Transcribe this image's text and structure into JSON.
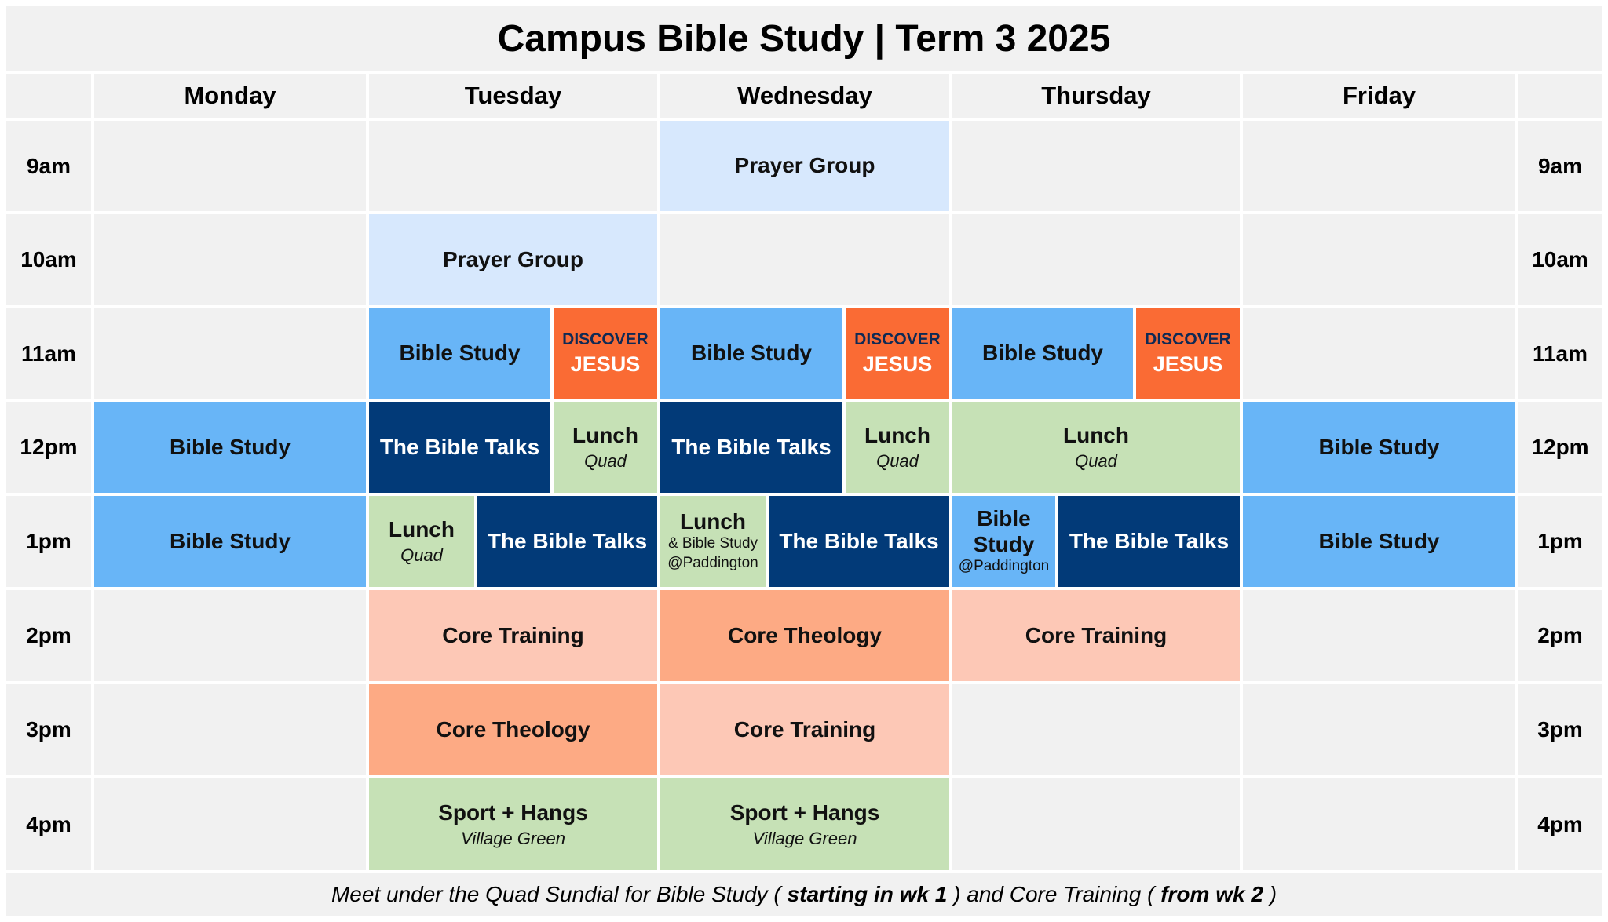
{
  "title": "Campus Bible Study | Term 3 2025",
  "days": [
    "Monday",
    "Tuesday",
    "Wednesday",
    "Thursday",
    "Friday"
  ],
  "times": [
    "9am",
    "10am",
    "11am",
    "12pm",
    "1pm",
    "2pm",
    "3pm",
    "4pm"
  ],
  "events": {
    "wed_9": {
      "title": "Prayer Group"
    },
    "tue_10": {
      "title": "Prayer Group"
    },
    "tue_11_bs": {
      "title": "Bible Study"
    },
    "tue_11_disc": {
      "top": "DISCOVER",
      "bottom": "JESUS"
    },
    "wed_11_bs": {
      "title": "Bible Study"
    },
    "wed_11_disc": {
      "top": "DISCOVER",
      "bottom": "JESUS"
    },
    "thu_11_bs": {
      "title": "Bible Study"
    },
    "thu_11_disc": {
      "top": "DISCOVER",
      "bottom": "JESUS"
    },
    "mon_12": {
      "title": "Bible Study"
    },
    "tue_12_talks": {
      "title": "The Bible Talks"
    },
    "tue_12_lunch": {
      "title": "Lunch",
      "location": "Quad"
    },
    "wed_12_talks": {
      "title": "The Bible Talks"
    },
    "wed_12_lunch": {
      "title": "Lunch",
      "location": "Quad"
    },
    "thu_12_lunch": {
      "title": "Lunch",
      "location": "Quad"
    },
    "fri_12": {
      "title": "Bible Study"
    },
    "mon_1": {
      "title": "Bible Study"
    },
    "tue_1_lunch": {
      "title": "Lunch",
      "location": "Quad"
    },
    "tue_1_talks": {
      "title": "The Bible Talks"
    },
    "wed_1_lunch": {
      "title": "Lunch",
      "line2": "& Bible Study",
      "line3": "@Paddington"
    },
    "wed_1_talks": {
      "title": "The Bible Talks"
    },
    "thu_1_bs": {
      "line1": "Bible",
      "line2": "Study",
      "location": "@Paddington"
    },
    "thu_1_talks": {
      "title": "The Bible Talks"
    },
    "fri_1": {
      "title": "Bible Study"
    },
    "tue_2": {
      "title": "Core Training"
    },
    "wed_2": {
      "title": "Core Theology"
    },
    "thu_2": {
      "title": "Core Training"
    },
    "tue_3": {
      "title": "Core Theology"
    },
    "wed_3": {
      "title": "Core Training"
    },
    "tue_4": {
      "title": "Sport + Hangs",
      "location": "Village Green"
    },
    "wed_4": {
      "title": "Sport + Hangs",
      "location": "Village Green"
    }
  },
  "footer": {
    "part1": "Meet under the Quad Sundial for Bible Study (",
    "bold1": "starting in wk 1",
    "part2": ") and Core Training (",
    "bold2": "from wk 2",
    "part3": ")"
  }
}
